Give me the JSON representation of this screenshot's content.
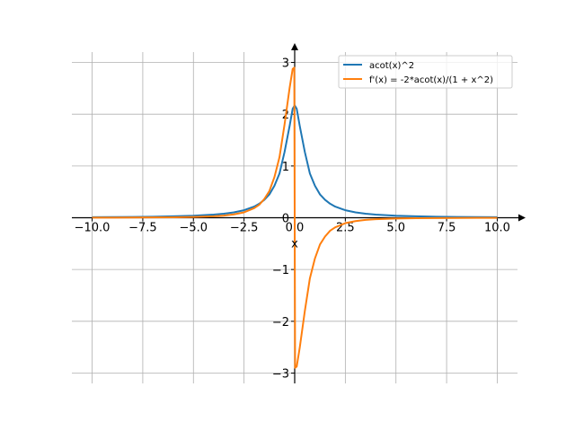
{
  "chart_data": {
    "type": "line",
    "title": "",
    "xlabel": "x",
    "ylabel": "",
    "xlim": [
      -11.0,
      11.0
    ],
    "ylim": [
      -3.2,
      3.2
    ],
    "grid": true,
    "legend_position": "top-right",
    "x_ticks": [
      -10.0,
      -7.5,
      -5.0,
      -2.5,
      0.0,
      2.5,
      5.0,
      7.5,
      10.0
    ],
    "x_tick_labels": [
      "−10.0",
      "−7.5",
      "−5.0",
      "−2.5",
      "0.0",
      "2.5",
      "5.0",
      "7.5",
      "10.0"
    ],
    "y_ticks": [
      -3,
      -2,
      -1,
      0,
      1,
      2,
      3
    ],
    "y_tick_labels": [
      "−3",
      "−2",
      "−1",
      "0",
      "1",
      "2",
      "3"
    ],
    "series": [
      {
        "name": "acot(x)^2",
        "color": "#1f77b4",
        "x": [
          -10.0,
          -9.0,
          -8.0,
          -7.0,
          -6.0,
          -5.0,
          -4.0,
          -3.5,
          -3.0,
          -2.5,
          -2.0,
          -1.75,
          -1.5,
          -1.25,
          -1.0,
          -0.75,
          -0.5,
          -0.25,
          -0.1,
          0.0,
          0.1,
          0.25,
          0.5,
          0.75,
          1.0,
          1.25,
          1.5,
          1.75,
          2.0,
          2.5,
          3.0,
          3.5,
          4.0,
          5.0,
          6.0,
          7.0,
          8.0,
          9.0,
          10.0
        ],
        "y": [
          0.0099,
          0.0122,
          0.0155,
          0.0202,
          0.0274,
          0.0389,
          0.06,
          0.0774,
          0.1037,
          0.1456,
          0.215,
          0.27,
          0.3455,
          0.4499,
          0.6169,
          0.8542,
          1.2716,
          1.7735,
          2.105,
          2.17,
          2.105,
          1.7735,
          1.2716,
          0.8542,
          0.6169,
          0.4499,
          0.3455,
          0.27,
          0.215,
          0.1456,
          0.1037,
          0.0774,
          0.06,
          0.0389,
          0.0274,
          0.0202,
          0.0155,
          0.0122,
          0.0099
        ]
      },
      {
        "name": "f'(x) = -2*acot(x)/(1 + x^2)",
        "color": "#ff7f0e",
        "x": [
          -10.0,
          -9.0,
          -8.0,
          -7.0,
          -6.0,
          -5.0,
          -4.0,
          -3.5,
          -3.0,
          -2.5,
          -2.0,
          -1.75,
          -1.5,
          -1.25,
          -1.0,
          -0.75,
          -0.5,
          -0.25,
          -0.1,
          -0.02,
          0.02,
          0.1,
          0.25,
          0.5,
          0.75,
          1.0,
          1.25,
          1.5,
          1.75,
          2.0,
          2.5,
          3.0,
          3.5,
          4.0,
          5.0,
          6.0,
          7.0,
          8.0,
          9.0,
          10.0
        ],
        "y": [
          0.002,
          0.0027,
          0.0038,
          0.0057,
          0.0087,
          0.0152,
          0.0288,
          0.0411,
          0.0644,
          0.1047,
          0.1855,
          0.2501,
          0.3617,
          0.5152,
          0.7854,
          1.17,
          1.8042,
          2.5074,
          2.8745,
          2.9,
          -2.9,
          -2.8745,
          -2.5074,
          -1.8042,
          -1.17,
          -0.7854,
          -0.5152,
          -0.3617,
          -0.2501,
          -0.1855,
          -0.1047,
          -0.0644,
          -0.0411,
          -0.0288,
          -0.0152,
          -0.0087,
          -0.0057,
          -0.0038,
          -0.0027,
          -0.002
        ]
      }
    ]
  }
}
